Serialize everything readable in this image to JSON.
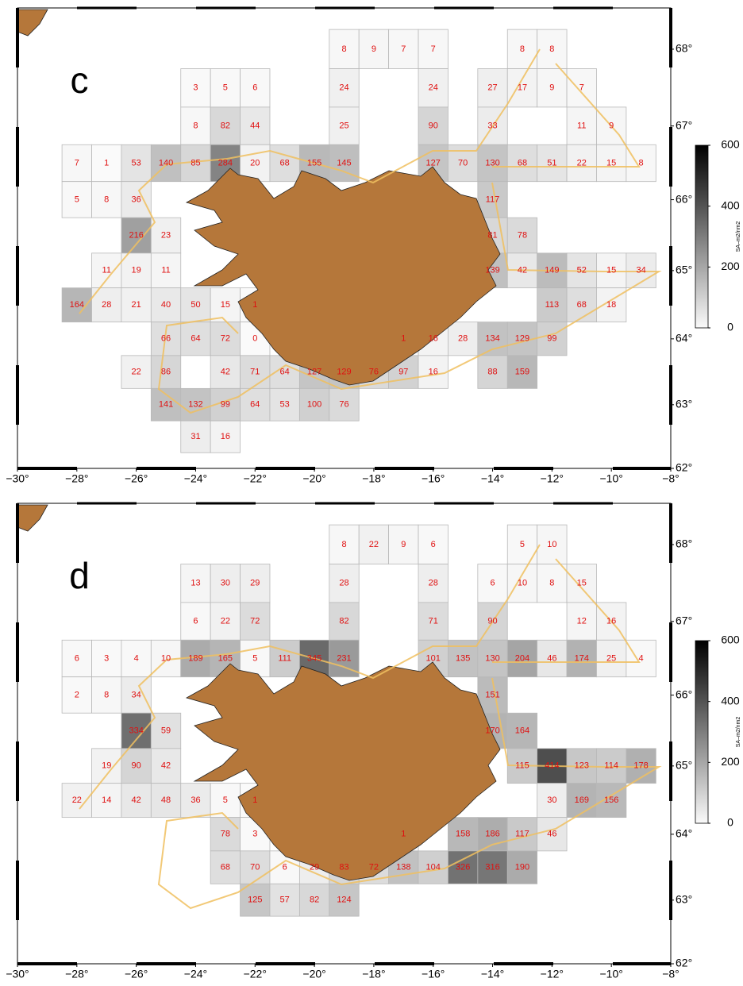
{
  "xlim": [
    -30,
    -8
  ],
  "ylim": [
    62,
    68.5
  ],
  "xticks": [
    {
      "value": -30,
      "label": "−30°"
    },
    {
      "value": -28,
      "label": "−28°"
    },
    {
      "value": -26,
      "label": "−26°"
    },
    {
      "value": -24,
      "label": "−24°"
    },
    {
      "value": -22,
      "label": "−22°"
    },
    {
      "value": -20,
      "label": "−20°"
    },
    {
      "value": -18,
      "label": "−18°"
    },
    {
      "value": -16,
      "label": "−16°"
    },
    {
      "value": -14,
      "label": "−14°"
    },
    {
      "value": -12,
      "label": "−12°"
    },
    {
      "value": -10,
      "label": "−10°"
    },
    {
      "value": -8,
      "label": "−8°"
    }
  ],
  "yticks": [
    {
      "value": 62,
      "label": "62°"
    },
    {
      "value": 63,
      "label": "63°"
    },
    {
      "value": 64,
      "label": "64°"
    },
    {
      "value": 65,
      "label": "65°"
    },
    {
      "value": 66,
      "label": "66°"
    },
    {
      "value": 67,
      "label": "67°"
    },
    {
      "value": 68,
      "label": "68°"
    }
  ],
  "colorbar": {
    "lim": [
      0,
      600
    ],
    "ticks": [
      0,
      200,
      400,
      600
    ],
    "label": "SA–m2/nm2"
  },
  "panels": [
    {
      "label": "c",
      "cells": [
        {
          "lon": -19,
          "lat": 68,
          "value": 8
        },
        {
          "lon": -18,
          "lat": 68,
          "value": 9
        },
        {
          "lon": -17,
          "lat": 68,
          "value": 7
        },
        {
          "lon": -16,
          "lat": 68,
          "value": 7
        },
        {
          "lon": -13,
          "lat": 68,
          "value": 8
        },
        {
          "lon": -12,
          "lat": 68,
          "value": 8
        },
        {
          "lon": -24,
          "lat": 67.5,
          "value": 3
        },
        {
          "lon": -23,
          "lat": 67.5,
          "value": 5
        },
        {
          "lon": -22,
          "lat": 67.5,
          "value": 6
        },
        {
          "lon": -19,
          "lat": 67.5,
          "value": 24
        },
        {
          "lon": -16,
          "lat": 67.5,
          "value": 24
        },
        {
          "lon": -14,
          "lat": 67.5,
          "value": 27
        },
        {
          "lon": -13,
          "lat": 67.5,
          "value": 17
        },
        {
          "lon": -12,
          "lat": 67.5,
          "value": 9
        },
        {
          "lon": -11,
          "lat": 67.5,
          "value": 7
        },
        {
          "lon": -24,
          "lat": 67,
          "value": 8
        },
        {
          "lon": -23,
          "lat": 67,
          "value": 82
        },
        {
          "lon": -22,
          "lat": 67,
          "value": 44
        },
        {
          "lon": -19,
          "lat": 67,
          "value": 25
        },
        {
          "lon": -16,
          "lat": 67,
          "value": 90
        },
        {
          "lon": -14,
          "lat": 67,
          "value": 33
        },
        {
          "lon": -11,
          "lat": 67,
          "value": 11
        },
        {
          "lon": -10,
          "lat": 67,
          "value": 9
        },
        {
          "lon": -28,
          "lat": 66.5,
          "value": 7
        },
        {
          "lon": -27,
          "lat": 66.5,
          "value": 1
        },
        {
          "lon": -26,
          "lat": 66.5,
          "value": 53
        },
        {
          "lon": -25,
          "lat": 66.5,
          "value": 140
        },
        {
          "lon": -24,
          "lat": 66.5,
          "value": 85
        },
        {
          "lon": -23,
          "lat": 66.5,
          "value": 284
        },
        {
          "lon": -22,
          "lat": 66.5,
          "value": 20
        },
        {
          "lon": -21,
          "lat": 66.5,
          "value": 68
        },
        {
          "lon": -20,
          "lat": 66.5,
          "value": 155
        },
        {
          "lon": -19,
          "lat": 66.5,
          "value": 145
        },
        {
          "lon": -16,
          "lat": 66.5,
          "value": 127
        },
        {
          "lon": -15,
          "lat": 66.5,
          "value": 70
        },
        {
          "lon": -14,
          "lat": 66.5,
          "value": 130
        },
        {
          "lon": -13,
          "lat": 66.5,
          "value": 68
        },
        {
          "lon": -12,
          "lat": 66.5,
          "value": 51
        },
        {
          "lon": -11,
          "lat": 66.5,
          "value": 22
        },
        {
          "lon": -10,
          "lat": 66.5,
          "value": 15
        },
        {
          "lon": -9,
          "lat": 66.5,
          "value": 8
        },
        {
          "lon": -28,
          "lat": 66,
          "value": 5
        },
        {
          "lon": -27,
          "lat": 66,
          "value": 8
        },
        {
          "lon": -26,
          "lat": 66,
          "value": 36
        },
        {
          "lon": -14,
          "lat": 66,
          "value": 117
        },
        {
          "lon": -26,
          "lat": 65.5,
          "value": 216
        },
        {
          "lon": -25,
          "lat": 65.5,
          "value": 23
        },
        {
          "lon": -14,
          "lat": 65.5,
          "value": 81
        },
        {
          "lon": -13,
          "lat": 65.5,
          "value": 78
        },
        {
          "lon": -27,
          "lat": 65,
          "value": 11
        },
        {
          "lon": -26,
          "lat": 65,
          "value": 19
        },
        {
          "lon": -25,
          "lat": 65,
          "value": 11
        },
        {
          "lon": -14,
          "lat": 65,
          "value": 139
        },
        {
          "lon": -13,
          "lat": 65,
          "value": 42
        },
        {
          "lon": -12,
          "lat": 65,
          "value": 149
        },
        {
          "lon": -11,
          "lat": 65,
          "value": 52
        },
        {
          "lon": -10,
          "lat": 65,
          "value": 15
        },
        {
          "lon": -9,
          "lat": 65,
          "value": 34
        },
        {
          "lon": -28,
          "lat": 64.5,
          "value": 164
        },
        {
          "lon": -27,
          "lat": 64.5,
          "value": 28
        },
        {
          "lon": -26,
          "lat": 64.5,
          "value": 21
        },
        {
          "lon": -25,
          "lat": 64.5,
          "value": 40
        },
        {
          "lon": -24,
          "lat": 64.5,
          "value": 50
        },
        {
          "lon": -23,
          "lat": 64.5,
          "value": 15
        },
        {
          "lon": -22,
          "lat": 64.5,
          "value": 1
        },
        {
          "lon": -12,
          "lat": 64.5,
          "value": 113
        },
        {
          "lon": -11,
          "lat": 64.5,
          "value": 68
        },
        {
          "lon": -10,
          "lat": 64.5,
          "value": 18
        },
        {
          "lon": -25,
          "lat": 64,
          "value": 66
        },
        {
          "lon": -24,
          "lat": 64,
          "value": 64
        },
        {
          "lon": -23,
          "lat": 64,
          "value": 72
        },
        {
          "lon": -22,
          "lat": 64,
          "value": 0
        },
        {
          "lon": -17,
          "lat": 64,
          "value": 1
        },
        {
          "lon": -16,
          "lat": 64,
          "value": 16
        },
        {
          "lon": -15,
          "lat": 64,
          "value": 28
        },
        {
          "lon": -14,
          "lat": 64,
          "value": 134
        },
        {
          "lon": -13,
          "lat": 64,
          "value": 129
        },
        {
          "lon": -12,
          "lat": 64,
          "value": 99
        },
        {
          "lon": -26,
          "lat": 63.5,
          "value": 22
        },
        {
          "lon": -25,
          "lat": 63.5,
          "value": 86
        },
        {
          "lon": -23,
          "lat": 63.5,
          "value": 42
        },
        {
          "lon": -22,
          "lat": 63.5,
          "value": 71
        },
        {
          "lon": -21,
          "lat": 63.5,
          "value": 64
        },
        {
          "lon": -20,
          "lat": 63.5,
          "value": 127
        },
        {
          "lon": -19,
          "lat": 63.5,
          "value": 129
        },
        {
          "lon": -18,
          "lat": 63.5,
          "value": 76
        },
        {
          "lon": -17,
          "lat": 63.5,
          "value": 97
        },
        {
          "lon": -16,
          "lat": 63.5,
          "value": 16
        },
        {
          "lon": -14,
          "lat": 63.5,
          "value": 88
        },
        {
          "lon": -13,
          "lat": 63.5,
          "value": 159
        },
        {
          "lon": -25,
          "lat": 63,
          "value": 141
        },
        {
          "lon": -24,
          "lat": 63,
          "value": 132
        },
        {
          "lon": -23,
          "lat": 63,
          "value": 99
        },
        {
          "lon": -22,
          "lat": 63,
          "value": 64
        },
        {
          "lon": -21,
          "lat": 63,
          "value": 53
        },
        {
          "lon": -20,
          "lat": 63,
          "value": 100
        },
        {
          "lon": -19,
          "lat": 63,
          "value": 76
        },
        {
          "lon": -24,
          "lat": 62.5,
          "value": 31
        },
        {
          "lon": -23,
          "lat": 62.5,
          "value": 16
        }
      ]
    },
    {
      "label": "d",
      "cells": [
        {
          "lon": -19,
          "lat": 68,
          "value": 8
        },
        {
          "lon": -18,
          "lat": 68,
          "value": 22
        },
        {
          "lon": -17,
          "lat": 68,
          "value": 9
        },
        {
          "lon": -16,
          "lat": 68,
          "value": 6
        },
        {
          "lon": -13,
          "lat": 68,
          "value": 5
        },
        {
          "lon": -12,
          "lat": 68,
          "value": 10
        },
        {
          "lon": -24,
          "lat": 67.5,
          "value": 13
        },
        {
          "lon": -23,
          "lat": 67.5,
          "value": 30
        },
        {
          "lon": -22,
          "lat": 67.5,
          "value": 29
        },
        {
          "lon": -19,
          "lat": 67.5,
          "value": 28
        },
        {
          "lon": -16,
          "lat": 67.5,
          "value": 28
        },
        {
          "lon": -14,
          "lat": 67.5,
          "value": 6
        },
        {
          "lon": -13,
          "lat": 67.5,
          "value": 10
        },
        {
          "lon": -12,
          "lat": 67.5,
          "value": 8
        },
        {
          "lon": -11,
          "lat": 67.5,
          "value": 15
        },
        {
          "lon": -24,
          "lat": 67,
          "value": 6
        },
        {
          "lon": -23,
          "lat": 67,
          "value": 22
        },
        {
          "lon": -22,
          "lat": 67,
          "value": 72
        },
        {
          "lon": -19,
          "lat": 67,
          "value": 82
        },
        {
          "lon": -16,
          "lat": 67,
          "value": 71
        },
        {
          "lon": -14,
          "lat": 67,
          "value": 90
        },
        {
          "lon": -11,
          "lat": 67,
          "value": 12
        },
        {
          "lon": -10,
          "lat": 67,
          "value": 16
        },
        {
          "lon": -28,
          "lat": 66.5,
          "value": 6
        },
        {
          "lon": -27,
          "lat": 66.5,
          "value": 3
        },
        {
          "lon": -26,
          "lat": 66.5,
          "value": 4
        },
        {
          "lon": -25,
          "lat": 66.5,
          "value": 10
        },
        {
          "lon": -24,
          "lat": 66.5,
          "value": 189
        },
        {
          "lon": -23,
          "lat": 66.5,
          "value": 165
        },
        {
          "lon": -22,
          "lat": 66.5,
          "value": 5
        },
        {
          "lon": -21,
          "lat": 66.5,
          "value": 111
        },
        {
          "lon": -20,
          "lat": 66.5,
          "value": 345
        },
        {
          "lon": -19,
          "lat": 66.5,
          "value": 231
        },
        {
          "lon": -16,
          "lat": 66.5,
          "value": 101
        },
        {
          "lon": -15,
          "lat": 66.5,
          "value": 135
        },
        {
          "lon": -14,
          "lat": 66.5,
          "value": 130
        },
        {
          "lon": -13,
          "lat": 66.5,
          "value": 204
        },
        {
          "lon": -12,
          "lat": 66.5,
          "value": 46
        },
        {
          "lon": -11,
          "lat": 66.5,
          "value": 174
        },
        {
          "lon": -10,
          "lat": 66.5,
          "value": 25
        },
        {
          "lon": -9,
          "lat": 66.5,
          "value": 4
        },
        {
          "lon": -28,
          "lat": 66,
          "value": 2
        },
        {
          "lon": -27,
          "lat": 66,
          "value": 8
        },
        {
          "lon": -26,
          "lat": 66,
          "value": 34
        },
        {
          "lon": -14,
          "lat": 66,
          "value": 151
        },
        {
          "lon": -26,
          "lat": 65.5,
          "value": 334
        },
        {
          "lon": -25,
          "lat": 65.5,
          "value": 59
        },
        {
          "lon": -14,
          "lat": 65.5,
          "value": 170
        },
        {
          "lon": -13,
          "lat": 65.5,
          "value": 164
        },
        {
          "lon": -27,
          "lat": 65,
          "value": 19
        },
        {
          "lon": -26,
          "lat": 65,
          "value": 90
        },
        {
          "lon": -25,
          "lat": 65,
          "value": 42
        },
        {
          "lon": -13,
          "lat": 65,
          "value": 115
        },
        {
          "lon": -12,
          "lat": 65,
          "value": 414
        },
        {
          "lon": -11,
          "lat": 65,
          "value": 123
        },
        {
          "lon": -10,
          "lat": 65,
          "value": 114
        },
        {
          "lon": -9,
          "lat": 65,
          "value": 178
        },
        {
          "lon": -28,
          "lat": 64.5,
          "value": 22
        },
        {
          "lon": -27,
          "lat": 64.5,
          "value": 14
        },
        {
          "lon": -26,
          "lat": 64.5,
          "value": 42
        },
        {
          "lon": -25,
          "lat": 64.5,
          "value": 48
        },
        {
          "lon": -24,
          "lat": 64.5,
          "value": 36
        },
        {
          "lon": -23,
          "lat": 64.5,
          "value": 5
        },
        {
          "lon": -22,
          "lat": 64.5,
          "value": 1
        },
        {
          "lon": -12,
          "lat": 64.5,
          "value": 30
        },
        {
          "lon": -11,
          "lat": 64.5,
          "value": 169
        },
        {
          "lon": -10,
          "lat": 64.5,
          "value": 156
        },
        {
          "lon": -23,
          "lat": 64,
          "value": 78
        },
        {
          "lon": -22,
          "lat": 64,
          "value": 3
        },
        {
          "lon": -17,
          "lat": 64,
          "value": 1
        },
        {
          "lon": -15,
          "lat": 64,
          "value": 158
        },
        {
          "lon": -14,
          "lat": 64,
          "value": 186
        },
        {
          "lon": -13,
          "lat": 64,
          "value": 117
        },
        {
          "lon": -12,
          "lat": 64,
          "value": 46
        },
        {
          "lon": -23,
          "lat": 63.5,
          "value": 68
        },
        {
          "lon": -22,
          "lat": 63.5,
          "value": 70
        },
        {
          "lon": -21,
          "lat": 63.5,
          "value": 6
        },
        {
          "lon": -20,
          "lat": 63.5,
          "value": 29
        },
        {
          "lon": -19,
          "lat": 63.5,
          "value": 83
        },
        {
          "lon": -18,
          "lat": 63.5,
          "value": 72
        },
        {
          "lon": -17,
          "lat": 63.5,
          "value": 138
        },
        {
          "lon": -16,
          "lat": 63.5,
          "value": 104
        },
        {
          "lon": -15,
          "lat": 63.5,
          "value": 326
        },
        {
          "lon": -14,
          "lat": 63.5,
          "value": 316
        },
        {
          "lon": -13,
          "lat": 63.5,
          "value": 190
        },
        {
          "lon": -22,
          "lat": 63,
          "value": 125
        },
        {
          "lon": -21,
          "lat": 63,
          "value": 57
        },
        {
          "lon": -20,
          "lat": 63,
          "value": 82
        },
        {
          "lon": -19,
          "lat": 63,
          "value": 124
        }
      ]
    }
  ]
}
